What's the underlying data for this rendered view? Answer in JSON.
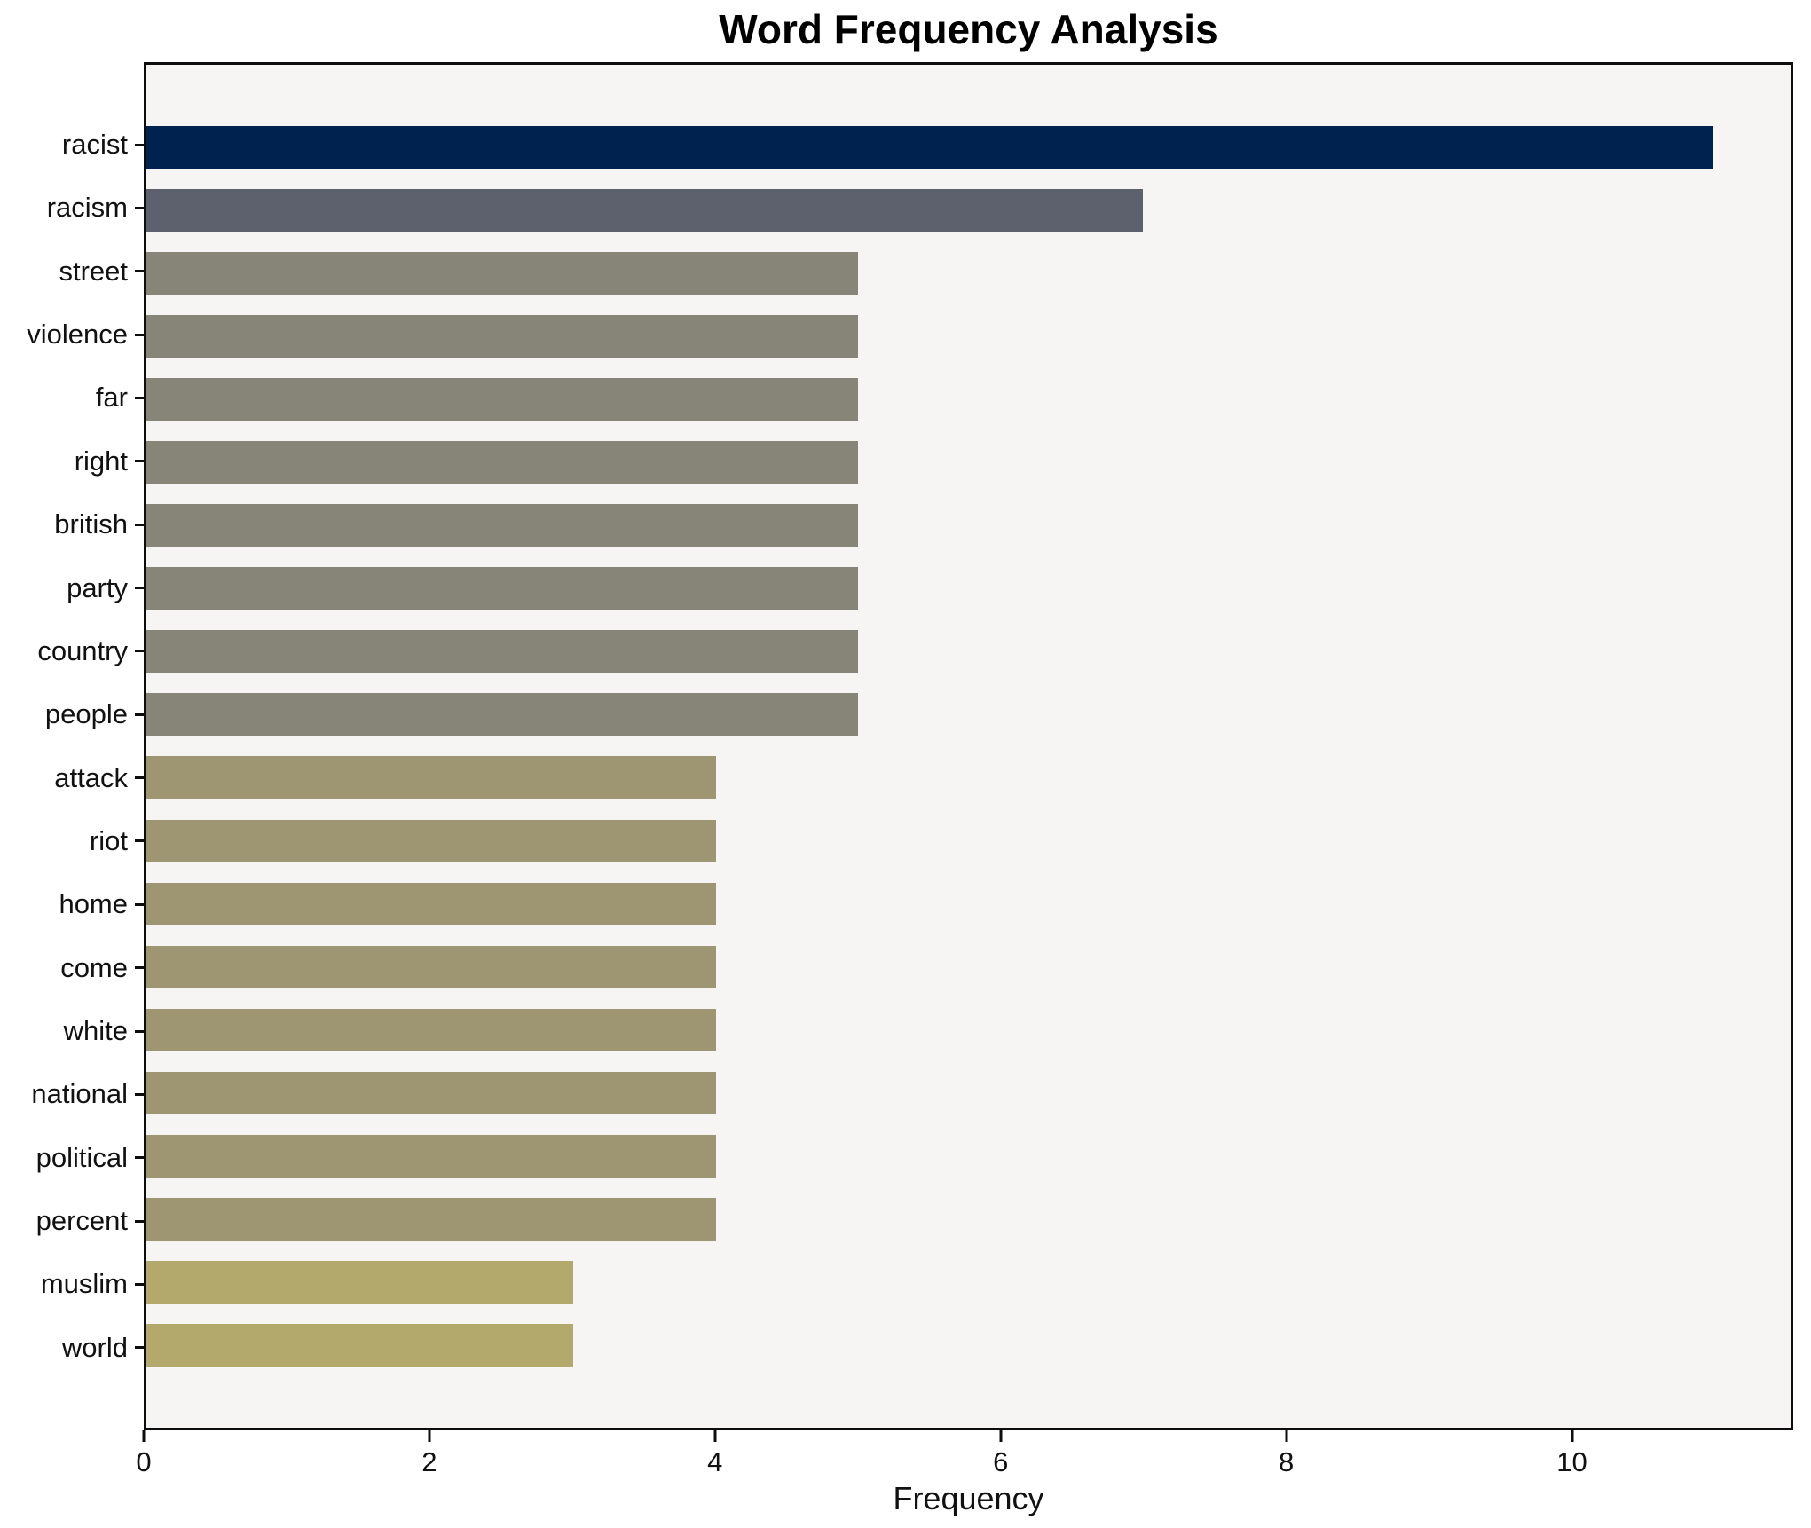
{
  "chart_data": {
    "type": "bar",
    "orientation": "horizontal",
    "title": "Word Frequency Analysis",
    "xlabel": "Frequency",
    "ylabel": "",
    "categories": [
      "racist",
      "racism",
      "street",
      "violence",
      "far",
      "right",
      "british",
      "party",
      "country",
      "people",
      "attack",
      "riot",
      "home",
      "come",
      "white",
      "national",
      "political",
      "percent",
      "muslim",
      "world"
    ],
    "values": [
      11,
      7,
      5,
      5,
      5,
      5,
      5,
      5,
      5,
      5,
      4,
      4,
      4,
      4,
      4,
      4,
      4,
      4,
      3,
      3
    ],
    "bar_colors": [
      "#00224e",
      "#5d616d",
      "#868577",
      "#868577",
      "#868577",
      "#868577",
      "#868577",
      "#868577",
      "#868577",
      "#868577",
      "#9e9672",
      "#9e9672",
      "#9e9672",
      "#9e9672",
      "#9e9672",
      "#9e9672",
      "#9e9672",
      "#9e9672",
      "#b3a96c",
      "#b3a96c"
    ],
    "xlim": [
      0,
      11.55
    ],
    "xticks": [
      0,
      2,
      4,
      6,
      8,
      10
    ],
    "grid": false,
    "legend": null
  },
  "colors": {
    "figure_background": "#ffffff",
    "plot_background": "#f6f5f3",
    "spine": "#0d0d0d",
    "text": "#111111"
  }
}
